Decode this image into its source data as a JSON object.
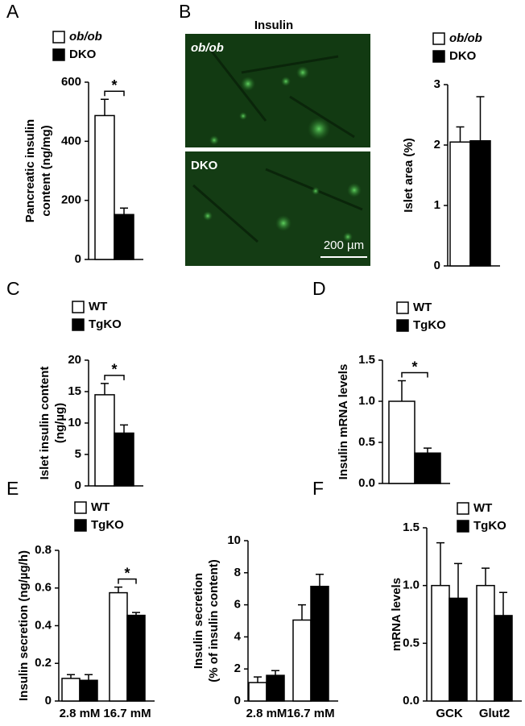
{
  "panels": [
    "A",
    "B",
    "C",
    "D",
    "E",
    "F"
  ],
  "image": {
    "title": "Insulin",
    "labels": [
      "ob/ob",
      "DKO"
    ],
    "scale_bar": "200 µm"
  },
  "chart_data": [
    {
      "type": "bar",
      "ylabel": [
        "Pancreatic insulin",
        "content (ng/mg)"
      ],
      "categories": [
        null
      ],
      "series": [
        {
          "name": "ob/ob",
          "color": "#ffffff",
          "values": [
            487
          ],
          "errors": [
            55
          ]
        },
        {
          "name": "DKO",
          "color": "#000000",
          "values": [
            152
          ],
          "errors": [
            22
          ]
        }
      ],
      "significance": [
        "*"
      ],
      "ylim": [
        0,
        600
      ],
      "yticks": [
        0,
        200,
        400,
        600
      ]
    },
    {
      "type": "bar",
      "ylabel": [
        "Islet area (%)"
      ],
      "categories": [
        null
      ],
      "series": [
        {
          "name": "ob/ob",
          "color": "#ffffff",
          "values": [
            2.05
          ],
          "errors": [
            0.25
          ]
        },
        {
          "name": "DKO",
          "color": "#000000",
          "values": [
            2.07
          ],
          "errors": [
            0.73
          ]
        }
      ],
      "ylim": [
        0,
        3
      ],
      "yticks": [
        0,
        1,
        2,
        3
      ]
    },
    {
      "type": "bar",
      "ylabel": [
        "Islet insulin content",
        "(ng/µg)"
      ],
      "categories": [
        null
      ],
      "series": [
        {
          "name": "WT",
          "color": "#ffffff",
          "values": [
            14.5
          ],
          "errors": [
            1.8
          ]
        },
        {
          "name": "TgKO",
          "color": "#000000",
          "values": [
            8.4
          ],
          "errors": [
            1.3
          ]
        }
      ],
      "significance": [
        "*"
      ],
      "ylim": [
        0,
        20
      ],
      "yticks": [
        0,
        5,
        10,
        15,
        20
      ]
    },
    {
      "type": "bar",
      "ylabel": [
        "Insulin mRNA levels"
      ],
      "categories": [
        null
      ],
      "series": [
        {
          "name": "WT",
          "color": "#ffffff",
          "values": [
            1.0
          ],
          "errors": [
            0.25
          ]
        },
        {
          "name": "TgKO",
          "color": "#000000",
          "values": [
            0.37
          ],
          "errors": [
            0.06
          ]
        }
      ],
      "significance": [
        "*"
      ],
      "ylim": [
        0,
        1.5
      ],
      "yticks": [
        {
          "value": 0,
          "label": "0.0"
        },
        0.5,
        {
          "value": 1,
          "label": "1.0"
        },
        1.5
      ]
    },
    {
      "type": "bar",
      "ylabel": [
        "Insulin secretion (ng/µg/h)"
      ],
      "categories": [
        "2.8 mM",
        "16.7 mM"
      ],
      "series": [
        {
          "name": "WT",
          "color": "#ffffff",
          "values": [
            0.12,
            0.575
          ],
          "errors": [
            0.02,
            0.03
          ]
        },
        {
          "name": "TgKO",
          "color": "#000000",
          "values": [
            0.11,
            0.455
          ],
          "errors": [
            0.03,
            0.015
          ]
        }
      ],
      "significance": [
        null,
        "*"
      ],
      "ylim": [
        0,
        0.8
      ],
      "yticks": [
        0,
        0.2,
        0.4,
        0.6,
        0.8
      ]
    },
    {
      "type": "bar",
      "ylabel": [
        "Insulin secretion",
        "(% of insulin content)"
      ],
      "categories": [
        "2.8 mM",
        "16.7 mM"
      ],
      "series": [
        {
          "name": "WT",
          "color": "#ffffff",
          "values": [
            1.15,
            5.05
          ],
          "errors": [
            0.35,
            0.95
          ]
        },
        {
          "name": "TgKO",
          "color": "#000000",
          "values": [
            1.6,
            7.15
          ],
          "errors": [
            0.3,
            0.75
          ]
        }
      ],
      "ylim": [
        0,
        10
      ],
      "yticks": [
        0,
        2,
        4,
        6,
        8,
        10
      ]
    },
    {
      "type": "bar",
      "ylabel": [
        "mRNA levels"
      ],
      "categories": [
        "GCK",
        "Glut2"
      ],
      "series": [
        {
          "name": "WT",
          "color": "#ffffff",
          "values": [
            1.0,
            1.0
          ],
          "errors": [
            0.37,
            0.15
          ]
        },
        {
          "name": "TgKO",
          "color": "#000000",
          "values": [
            0.89,
            0.74
          ],
          "errors": [
            0.3,
            0.2
          ]
        }
      ],
      "ylim": [
        0,
        1.5
      ],
      "yticks": [
        {
          "value": 0,
          "label": "0.0"
        },
        0.5,
        {
          "value": 1,
          "label": "1.0"
        },
        1.5
      ]
    }
  ]
}
